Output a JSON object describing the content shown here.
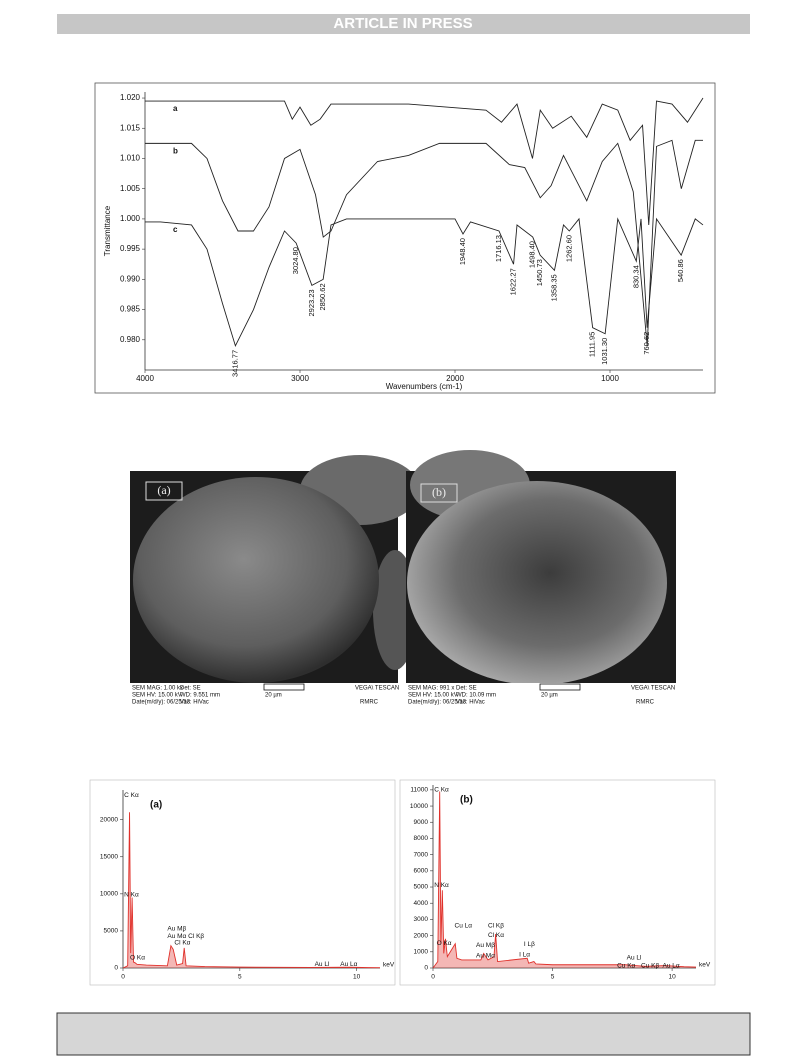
{
  "header": {
    "banner": "ARTICLE IN PRESS"
  },
  "chart_data": [
    {
      "type": "line",
      "y_label": "Transmittance",
      "x_label": "Wavenumbers (cm-1)",
      "xlim": [
        4000,
        400
      ],
      "ylim": [
        0.975,
        1.021
      ],
      "xticks": [
        4000,
        3000,
        2000,
        1000
      ],
      "yticks": [
        {
          "value": 1.02,
          "label": "1.020"
        },
        1.015,
        {
          "value": 1.01,
          "label": "1.010"
        },
        1.005,
        {
          "value": 1.0,
          "label": "1.000"
        },
        0.995,
        {
          "value": 0.99,
          "label": "0.990"
        },
        0.985,
        {
          "value": 0.98,
          "label": "0.980"
        }
      ],
      "series": [
        {
          "name": "a",
          "color": "#222222",
          "x": [
            4000,
            3100,
            3050,
            3000,
            2930,
            2870,
            2800,
            2300,
            1800,
            1700,
            1600,
            1500,
            1450,
            1370,
            1250,
            1150,
            1050,
            950,
            870,
            790,
            750,
            700,
            600,
            500,
            400
          ],
          "values": [
            1.0195,
            1.0195,
            1.0165,
            1.0185,
            1.0155,
            1.0165,
            1.019,
            1.019,
            1.018,
            1.016,
            1.019,
            1.01,
            1.018,
            1.015,
            1.017,
            1.0135,
            1.019,
            1.018,
            1.013,
            1.0155,
            0.999,
            1.0195,
            1.019,
            1.016,
            1.02
          ]
        },
        {
          "name": "b",
          "color": "#222222",
          "x": [
            4000,
            3700,
            3600,
            3500,
            3400,
            3300,
            3200,
            3100,
            3000,
            2900,
            2850,
            2800,
            2700,
            2500,
            2300,
            2100,
            1800,
            1650,
            1550,
            1450,
            1380,
            1300,
            1150,
            1050,
            950,
            850,
            760,
            700,
            600,
            540,
            450,
            400
          ],
          "values": [
            1.0125,
            1.0125,
            1.01,
            1.003,
            0.998,
            0.998,
            1.002,
            1.01,
            1.0115,
            1.004,
            0.997,
            0.998,
            1.004,
            1.0095,
            1.0105,
            1.0125,
            1.0125,
            1.009,
            1.0085,
            1.0035,
            1.0055,
            1.0105,
            1.003,
            1.0095,
            1.0125,
            1.0045,
            0.979,
            1.012,
            1.013,
            1.005,
            1.013,
            1.013
          ]
        },
        {
          "name": "c",
          "color": "#222222",
          "x": [
            4000,
            3900,
            3700,
            3600,
            3500,
            3416.77,
            3300,
            3200,
            3100,
            3024.8,
            2923.23,
            2850.62,
            2800,
            2700,
            2000,
            1948.4,
            1900,
            1716.13,
            1622.27,
            1600,
            1498.4,
            1450.73,
            1358.35,
            1300,
            1262.6,
            1200,
            1111.95,
            1031.3,
            950,
            830.34,
            800,
            760.62,
            700,
            540.86,
            450,
            400
          ],
          "values": [
            0.9995,
            0.9995,
            0.999,
            0.995,
            0.986,
            0.979,
            0.985,
            0.992,
            0.998,
            0.996,
            0.989,
            0.99,
            0.999,
            1.0,
            1.0,
            0.9975,
            0.9995,
            0.998,
            0.9925,
            0.999,
            0.997,
            0.994,
            0.9915,
            0.999,
            0.998,
            1.0,
            0.982,
            0.981,
            1.0,
            0.993,
            1.0,
            0.982,
            1.0,
            0.994,
            1.0,
            0.999
          ]
        }
      ],
      "peak_labels": [
        {
          "value": 3416.77,
          "label": "3416.77"
        },
        {
          "value": 3024.8,
          "label": "3024.80"
        },
        {
          "value": 2923.23,
          "label": "2923.23"
        },
        {
          "value": 2850.62,
          "label": "2850.62"
        },
        {
          "value": 1948.4,
          "label": "1948.40"
        },
        {
          "value": 1716.13,
          "label": "1716.13"
        },
        {
          "value": 1622.27,
          "label": "1622.27"
        },
        {
          "value": 1498.4,
          "label": "1498.40"
        },
        {
          "value": 1450.73,
          "label": "1450.73"
        },
        {
          "value": 1358.35,
          "label": "1358.35"
        },
        {
          "value": 1262.6,
          "label": "1262.60"
        },
        {
          "value": 1111.95,
          "label": "1111.95"
        },
        {
          "value": 1031.3,
          "label": "1031.30"
        },
        {
          "value": 830.34,
          "label": "830.34"
        },
        {
          "value": 760.62,
          "label": "760.62"
        },
        {
          "value": 540.86,
          "label": "540.86"
        }
      ]
    },
    {
      "type": "spectrum",
      "label": "(a)",
      "x_unit": "keV",
      "xlim": [
        0,
        11
      ],
      "ylim": [
        0,
        24000
      ],
      "xticks": [
        0,
        5,
        10
      ],
      "yticks": [
        0,
        5000,
        10000,
        15000,
        20000
      ],
      "series": [
        {
          "color": "#e0302a",
          "x": [
            0,
            0.2,
            0.28,
            0.33,
            0.39,
            0.45,
            0.52,
            0.6,
            1.0,
            1.9,
            2.05,
            2.15,
            2.3,
            2.55,
            2.62,
            2.7,
            3.5,
            5,
            8,
            9.7,
            10.5,
            11
          ],
          "values": [
            0,
            300,
            21000,
            2000,
            9500,
            800,
            700,
            500,
            400,
            300,
            3000,
            2500,
            400,
            600,
            2700,
            300,
            200,
            120,
            80,
            100,
            50,
            40
          ]
        }
      ],
      "annotations": [
        {
          "text": "C Kα",
          "x": 0.05,
          "y": 23300
        },
        {
          "text": "N Kα",
          "x": 0.05,
          "y": 9900
        },
        {
          "text": "O Kα",
          "x": 0.3,
          "y": 1400
        },
        {
          "text": "Au Mβ",
          "x": 1.9,
          "y": 5300
        },
        {
          "text": "Au Mα Cl Kβ",
          "x": 1.9,
          "y": 4300
        },
        {
          "text": "Cl Kα",
          "x": 2.2,
          "y": 3400
        },
        {
          "text": "Au Ll",
          "x": 8.2,
          "y": 500
        },
        {
          "text": "Au Lα",
          "x": 9.3,
          "y": 500
        }
      ]
    },
    {
      "type": "spectrum",
      "label": "(b)",
      "x_unit": "keV",
      "xlim": [
        0,
        11
      ],
      "ylim": [
        0,
        11300
      ],
      "xticks": [
        0,
        5,
        10
      ],
      "yticks": [
        0,
        1000,
        2000,
        3000,
        4000,
        5000,
        6000,
        7000,
        8000,
        9000,
        10000,
        11000
      ],
      "series": [
        {
          "color": "#e0302a",
          "x": [
            0,
            0.2,
            0.28,
            0.33,
            0.39,
            0.45,
            0.52,
            0.6,
            0.93,
            1.0,
            1.2,
            2.0,
            2.12,
            2.3,
            2.55,
            2.62,
            2.7,
            3.94,
            4.0,
            4.22,
            4.3,
            5,
            8.04,
            8.9,
            9.7,
            10.5,
            11
          ],
          "values": [
            0,
            400,
            10900,
            1500,
            4800,
            900,
            1800,
            700,
            1500,
            600,
            500,
            500,
            900,
            500,
            700,
            2100,
            400,
            600,
            300,
            400,
            250,
            200,
            200,
            100,
            150,
            80,
            60
          ]
        }
      ],
      "annotations": [
        {
          "text": "C Kα",
          "x": 0.05,
          "y": 11000
        },
        {
          "text": "N Kα",
          "x": 0.05,
          "y": 5100
        },
        {
          "text": "O Kα",
          "x": 0.15,
          "y": 1520
        },
        {
          "text": "Cu Lα",
          "x": 0.9,
          "y": 2600
        },
        {
          "text": "Au Mβ",
          "x": 1.8,
          "y": 1400
        },
        {
          "text": "Au Mα",
          "x": 1.8,
          "y": 760
        },
        {
          "text": "Cl Kβ",
          "x": 2.3,
          "y": 2600
        },
        {
          "text": "Cl Kα",
          "x": 2.3,
          "y": 2030
        },
        {
          "text": "I Lβ",
          "x": 3.8,
          "y": 1460
        },
        {
          "text": "I Lα",
          "x": 3.6,
          "y": 825
        },
        {
          "text": "Au Ll",
          "x": 8.1,
          "y": 635
        },
        {
          "text": "Cu Kα",
          "x": 7.7,
          "y": 130
        },
        {
          "text": "Cu Kβ",
          "x": 8.7,
          "y": 130
        },
        {
          "text": "Au Lα",
          "x": 9.6,
          "y": 130
        }
      ]
    }
  ],
  "sem_images": [
    {
      "label": "(a)",
      "info": [
        "SEM MAG: 1.00 kx",
        "SEM HV: 15.00 kV",
        "Date(m/d/y): 06/25/13",
        "Det: SE",
        "WD: 9.551 mm",
        "Vac: HiVac",
        "20 µm",
        "VEGA\\ TESCAN",
        "RMRC"
      ]
    },
    {
      "label": "(b)",
      "info": [
        "SEM MAG: 991 x",
        "SEM HV: 15.00 kV",
        "Date(m/d/y): 06/25/13",
        "Det: SE",
        "WD: 10.09 mm",
        "Vac: HiVac",
        "20 µm",
        "VEGA\\ TESCAN",
        "RMRC"
      ]
    }
  ]
}
